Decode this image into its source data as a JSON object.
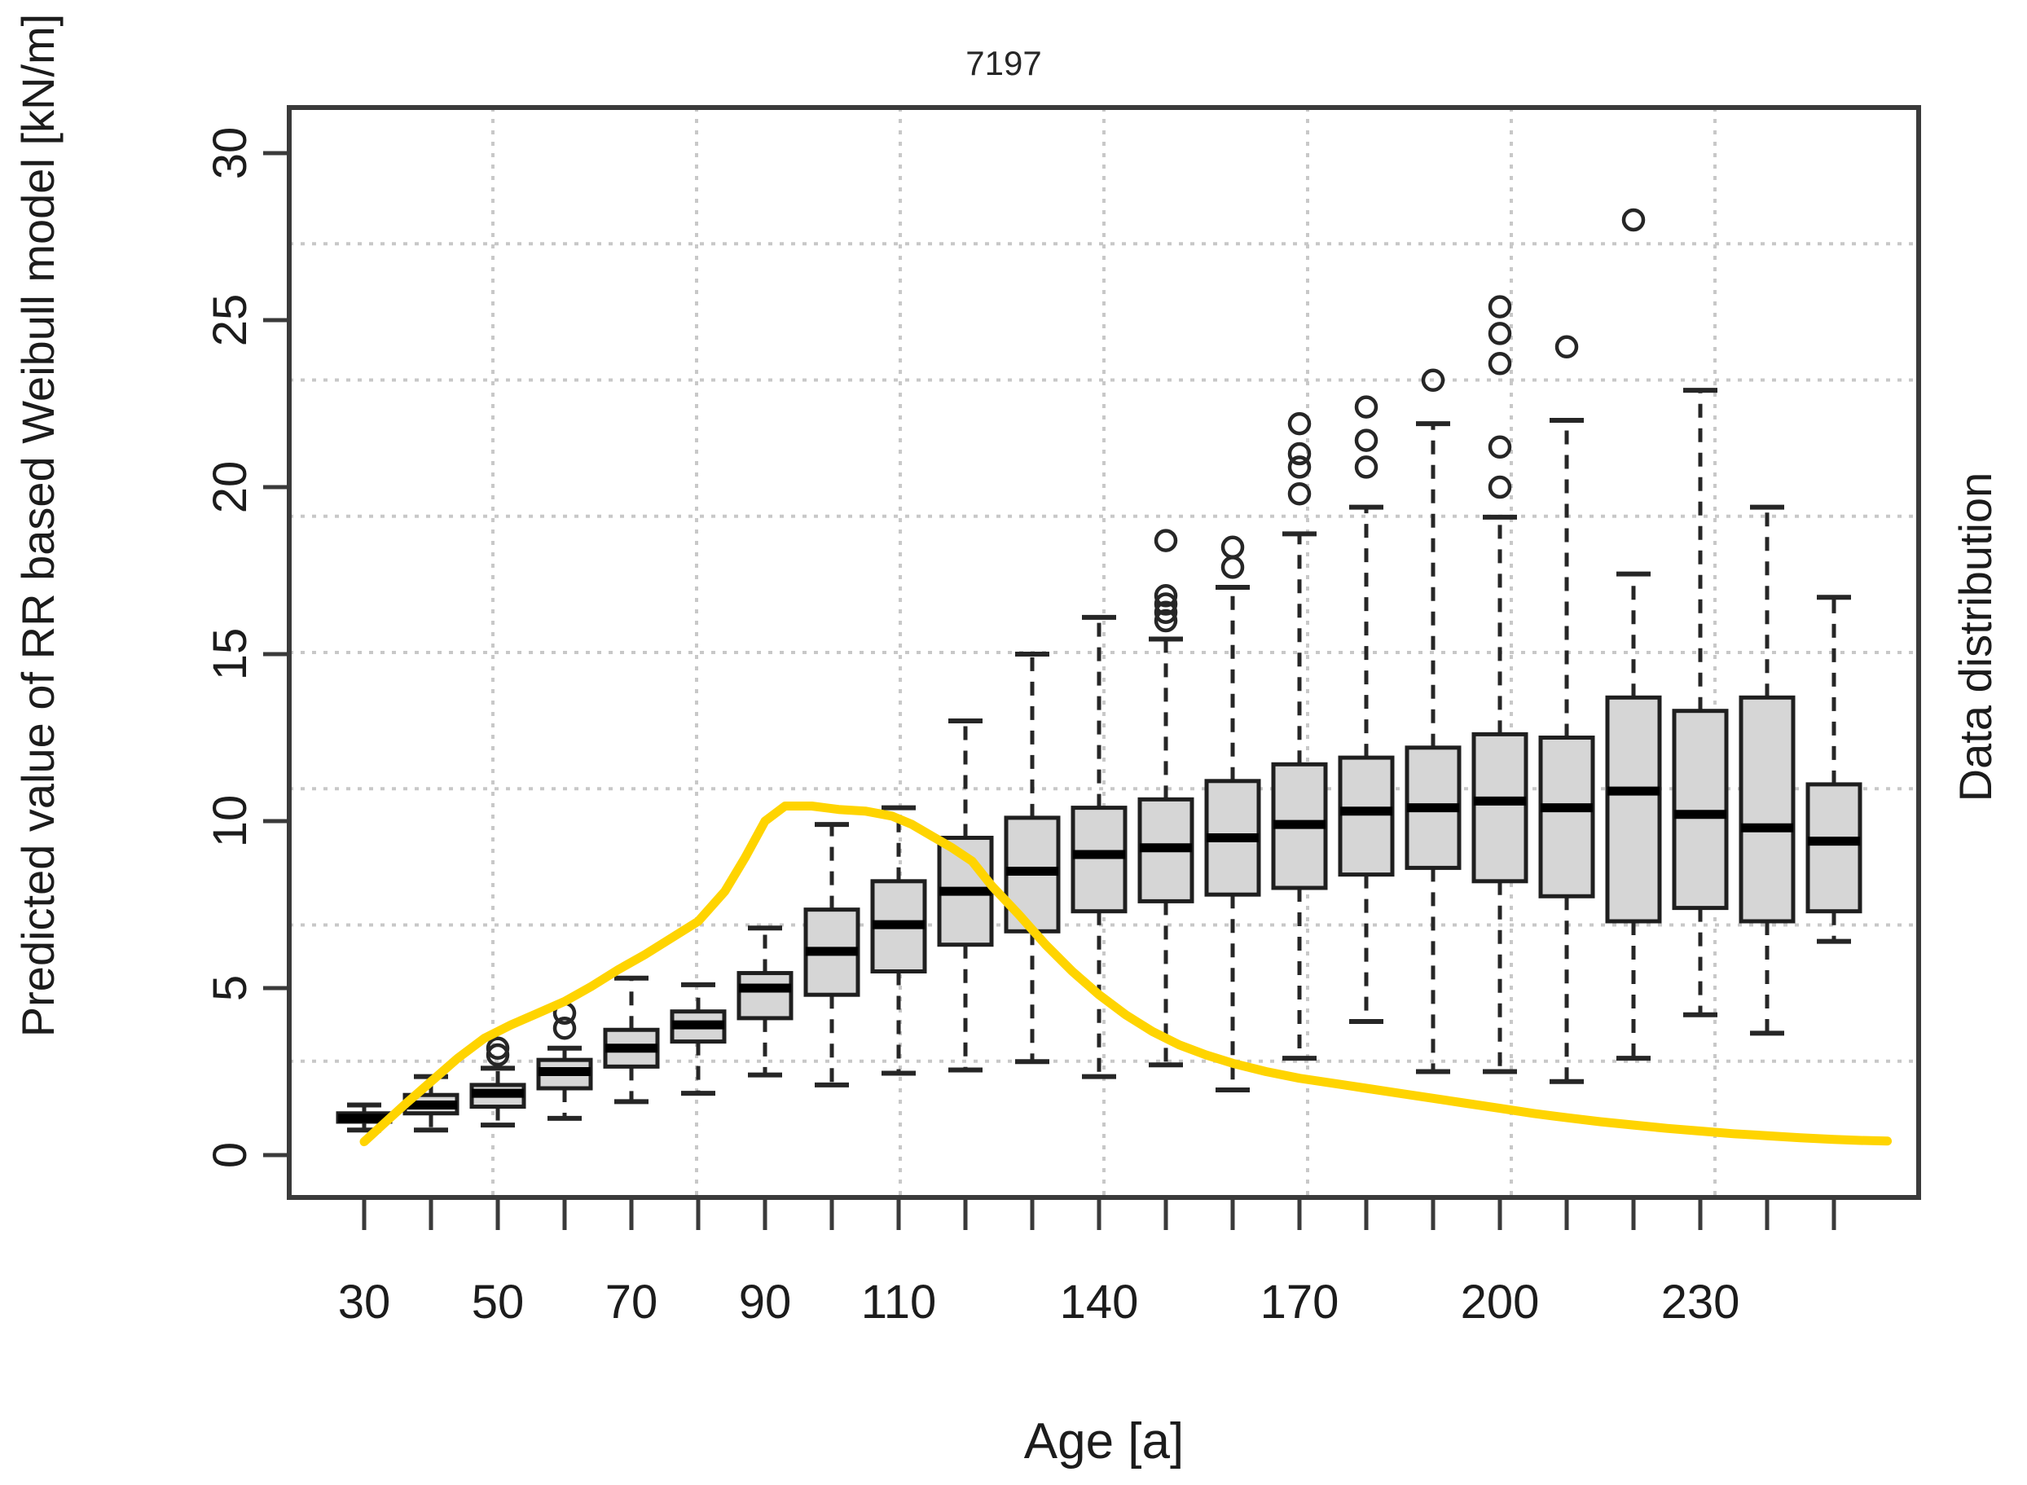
{
  "figure": {
    "title": "7197",
    "x_axis_label": "Age [a]",
    "y_axis_label": "Predicted value of RR based Weibull model [kN/m]",
    "right_axis_label": "Data distribution"
  },
  "chart_data": {
    "type": "box",
    "title": "7197",
    "xlabel": "Age [a]",
    "ylabel": "Predicted value of RR based Weibull model [kN/m]",
    "ylabel_right": "Data distribution",
    "x_tick_label_values": [
      30,
      50,
      70,
      90,
      110,
      140,
      170,
      200,
      230
    ],
    "y_ticks": [
      0,
      5,
      10,
      15,
      20,
      25,
      30
    ],
    "ylim": [
      -1.3,
      31.3
    ],
    "xlim_age": [
      19,
      261
    ],
    "grid": {
      "nx": 8,
      "ny": 8,
      "style": "dotted",
      "color": "#c8c8c8"
    },
    "legend_position": "none",
    "boxes": [
      {
        "age": 30,
        "low": 0.75,
        "q1": 1.0,
        "median": 1.1,
        "q3": 1.25,
        "high": 1.5,
        "outliers": []
      },
      {
        "age": 40,
        "low": 0.75,
        "q1": 1.25,
        "median": 1.5,
        "q3": 1.8,
        "high": 2.35,
        "outliers": []
      },
      {
        "age": 50,
        "low": 0.9,
        "q1": 1.45,
        "median": 1.85,
        "q3": 2.1,
        "high": 2.6,
        "outliers": [
          3.0,
          3.2
        ]
      },
      {
        "age": 60,
        "low": 1.1,
        "q1": 2.0,
        "median": 2.5,
        "q3": 2.85,
        "high": 3.2,
        "outliers": [
          3.8,
          4.25
        ]
      },
      {
        "age": 70,
        "low": 1.6,
        "q1": 2.65,
        "median": 3.2,
        "q3": 3.75,
        "high": 5.3,
        "outliers": []
      },
      {
        "age": 80,
        "low": 1.85,
        "q1": 3.4,
        "median": 3.9,
        "q3": 4.3,
        "high": 5.1,
        "outliers": []
      },
      {
        "age": 90,
        "low": 2.4,
        "q1": 4.1,
        "median": 5.0,
        "q3": 5.45,
        "high": 6.8,
        "outliers": []
      },
      {
        "age": 100,
        "low": 2.1,
        "q1": 4.8,
        "median": 6.1,
        "q3": 7.35,
        "high": 9.9,
        "outliers": []
      },
      {
        "age": 110,
        "low": 2.45,
        "q1": 5.5,
        "median": 6.9,
        "q3": 8.2,
        "high": 10.4,
        "outliers": []
      },
      {
        "age": 120,
        "low": 2.55,
        "q1": 6.3,
        "median": 7.9,
        "q3": 9.5,
        "high": 13.0,
        "outliers": []
      },
      {
        "age": 130,
        "low": 2.8,
        "q1": 6.7,
        "median": 8.5,
        "q3": 10.1,
        "high": 15.0,
        "outliers": []
      },
      {
        "age": 140,
        "low": 2.35,
        "q1": 7.3,
        "median": 9.0,
        "q3": 10.4,
        "high": 16.1,
        "outliers": []
      },
      {
        "age": 150,
        "low": 2.7,
        "q1": 7.6,
        "median": 9.2,
        "q3": 10.65,
        "high": 15.45,
        "outliers": [
          16.0,
          16.25,
          16.5,
          16.75,
          18.4
        ]
      },
      {
        "age": 160,
        "low": 1.95,
        "q1": 7.8,
        "median": 9.5,
        "q3": 11.2,
        "high": 17.0,
        "outliers": [
          17.6,
          18.2
        ]
      },
      {
        "age": 170,
        "low": 2.9,
        "q1": 8.0,
        "median": 9.9,
        "q3": 11.7,
        "high": 18.6,
        "outliers": [
          19.8,
          20.6,
          21.0,
          21.9
        ]
      },
      {
        "age": 180,
        "low": 4.0,
        "q1": 8.4,
        "median": 10.3,
        "q3": 11.9,
        "high": 19.4,
        "outliers": [
          20.6,
          21.4,
          22.4
        ]
      },
      {
        "age": 190,
        "low": 2.5,
        "q1": 8.6,
        "median": 10.4,
        "q3": 12.2,
        "high": 21.9,
        "outliers": [
          23.2
        ]
      },
      {
        "age": 200,
        "low": 2.5,
        "q1": 8.2,
        "median": 10.6,
        "q3": 12.6,
        "high": 19.1,
        "outliers": [
          20.0,
          21.2,
          23.7,
          24.6,
          25.4
        ]
      },
      {
        "age": 210,
        "low": 2.2,
        "q1": 7.75,
        "median": 10.4,
        "q3": 12.5,
        "high": 22.0,
        "outliers": [
          24.2
        ]
      },
      {
        "age": 220,
        "low": 2.9,
        "q1": 7.0,
        "median": 10.9,
        "q3": 13.7,
        "high": 17.4,
        "outliers": [
          28.0
        ]
      },
      {
        "age": 230,
        "low": 4.2,
        "q1": 7.4,
        "median": 10.2,
        "q3": 13.3,
        "high": 22.9,
        "outliers": []
      },
      {
        "age": 240,
        "low": 3.65,
        "q1": 7.0,
        "median": 9.8,
        "q3": 13.7,
        "high": 19.4,
        "outliers": []
      },
      {
        "age": 250,
        "low": 6.4,
        "q1": 7.3,
        "median": 9.4,
        "q3": 11.1,
        "high": 16.7,
        "outliers": []
      }
    ],
    "series": [
      {
        "name": "Data distribution",
        "type": "line",
        "color": "#FFD400",
        "points": [
          [
            30,
            0.4
          ],
          [
            33,
            0.95
          ],
          [
            36,
            1.5
          ],
          [
            40,
            2.2
          ],
          [
            44,
            2.9
          ],
          [
            48,
            3.5
          ],
          [
            52,
            3.9
          ],
          [
            56,
            4.25
          ],
          [
            60,
            4.6
          ],
          [
            64,
            5.05
          ],
          [
            68,
            5.55
          ],
          [
            72,
            6.0
          ],
          [
            76,
            6.5
          ],
          [
            80,
            7.0
          ],
          [
            84,
            7.9
          ],
          [
            87,
            8.9
          ],
          [
            90,
            10.0
          ],
          [
            93,
            10.45
          ],
          [
            97,
            10.45
          ],
          [
            101,
            10.35
          ],
          [
            105,
            10.3
          ],
          [
            109,
            10.15
          ],
          [
            112,
            9.9
          ],
          [
            115,
            9.55
          ],
          [
            118,
            9.2
          ],
          [
            121,
            8.8
          ],
          [
            124,
            8.05
          ],
          [
            128,
            7.2
          ],
          [
            132,
            6.3
          ],
          [
            136,
            5.5
          ],
          [
            140,
            4.8
          ],
          [
            144,
            4.2
          ],
          [
            148,
            3.7
          ],
          [
            152,
            3.3
          ],
          [
            156,
            3.0
          ],
          [
            160,
            2.75
          ],
          [
            165,
            2.5
          ],
          [
            170,
            2.3
          ],
          [
            175,
            2.15
          ],
          [
            180,
            2.0
          ],
          [
            185,
            1.85
          ],
          [
            190,
            1.7
          ],
          [
            195,
            1.55
          ],
          [
            200,
            1.4
          ],
          [
            205,
            1.25
          ],
          [
            210,
            1.12
          ],
          [
            215,
            1.0
          ],
          [
            220,
            0.9
          ],
          [
            225,
            0.8
          ],
          [
            230,
            0.72
          ],
          [
            235,
            0.64
          ],
          [
            240,
            0.58
          ],
          [
            245,
            0.52
          ],
          [
            250,
            0.47
          ],
          [
            254,
            0.44
          ],
          [
            258,
            0.42
          ]
        ]
      }
    ],
    "colors": {
      "box_fill": "#d6d6d6",
      "box_border": "#1f1f1f",
      "median": "#000000",
      "whisker": "#262626",
      "outlier": "#262626",
      "axis": "#3a3a3a",
      "grid": "#c8c8c8",
      "line": "#FFD400",
      "text": "#1c1c1c"
    }
  }
}
